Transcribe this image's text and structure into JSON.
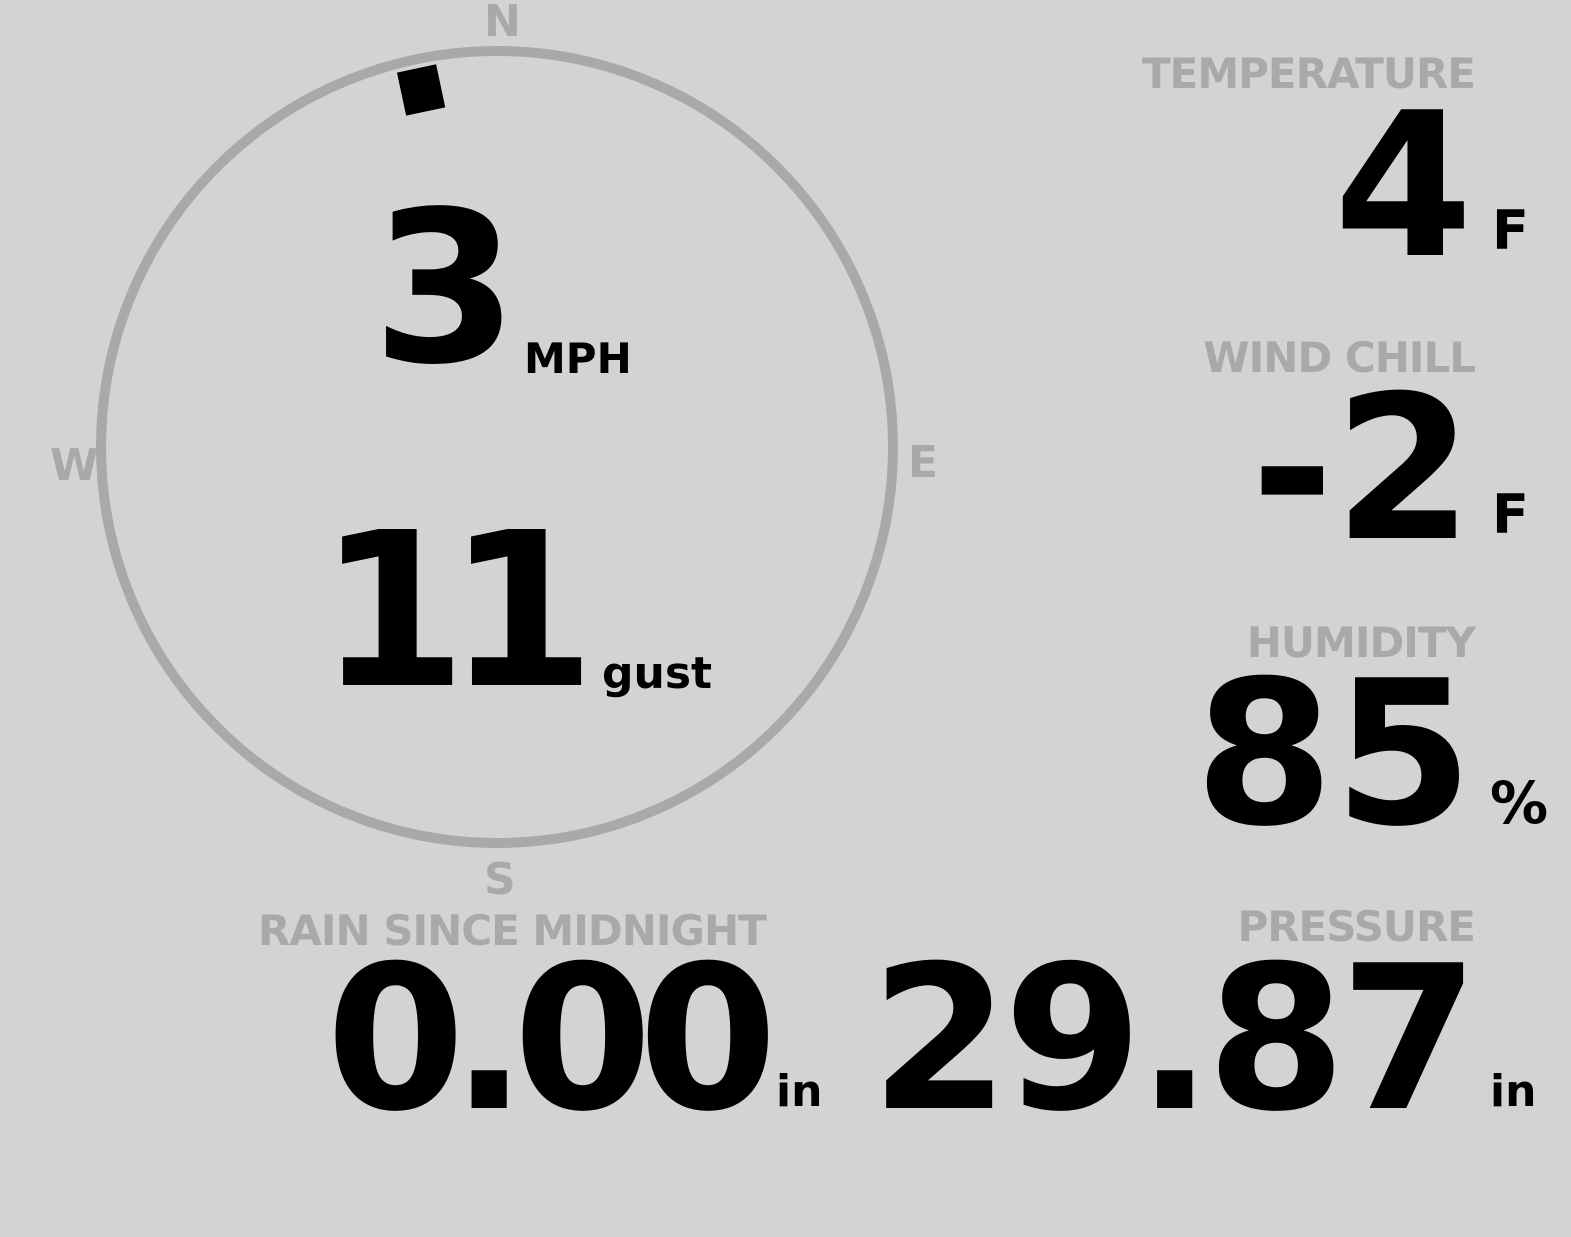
{
  "colors": {
    "background": "#d3d3d3",
    "label": "#a9a9a9",
    "value": "#000000",
    "dial": "#a9a9a9"
  },
  "compass": {
    "north": "N",
    "south": "S",
    "east": "E",
    "west": "W",
    "wind_direction_deg": 348
  },
  "wind": {
    "speed": "3",
    "speed_unit": "MPH",
    "gust": "11",
    "gust_unit": "gust"
  },
  "temperature": {
    "label": "TEMPERATURE",
    "value": "4",
    "unit": "F"
  },
  "wind_chill": {
    "label": "WIND CHILL",
    "value": "-2",
    "unit": "F"
  },
  "humidity": {
    "label": "HUMIDITY",
    "value": "85",
    "unit": "%"
  },
  "rain": {
    "label": "RAIN SINCE MIDNIGHT",
    "value": "0.00",
    "unit": "in"
  },
  "pressure": {
    "label": "PRESSURE",
    "value": "29.87",
    "unit": "in"
  }
}
